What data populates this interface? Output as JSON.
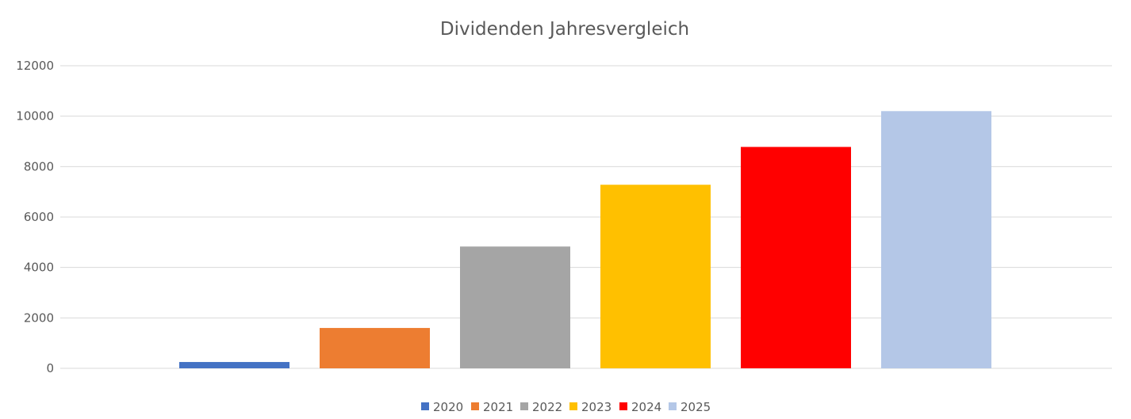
{
  "chart_data": {
    "type": "bar",
    "title": "Dividenden Jahresvergleich",
    "xlabel": "",
    "ylabel": "",
    "ylim": [
      0,
      12000
    ],
    "yticks": [
      0,
      2000,
      4000,
      6000,
      8000,
      10000,
      12000
    ],
    "grid": true,
    "legend_position": "bottom",
    "series": [
      {
        "name": "2020",
        "values": [
          250
        ],
        "color": "#4472c4"
      },
      {
        "name": "2021",
        "values": [
          1600
        ],
        "color": "#ed7d31"
      },
      {
        "name": "2022",
        "values": [
          4830
        ],
        "color": "#a5a5a5"
      },
      {
        "name": "2023",
        "values": [
          7280
        ],
        "color": "#ffc000"
      },
      {
        "name": "2024",
        "values": [
          8780
        ],
        "color": "#ff0000"
      },
      {
        "name": "2025",
        "values": [
          10200
        ],
        "color": "#b4c7e7"
      }
    ]
  }
}
